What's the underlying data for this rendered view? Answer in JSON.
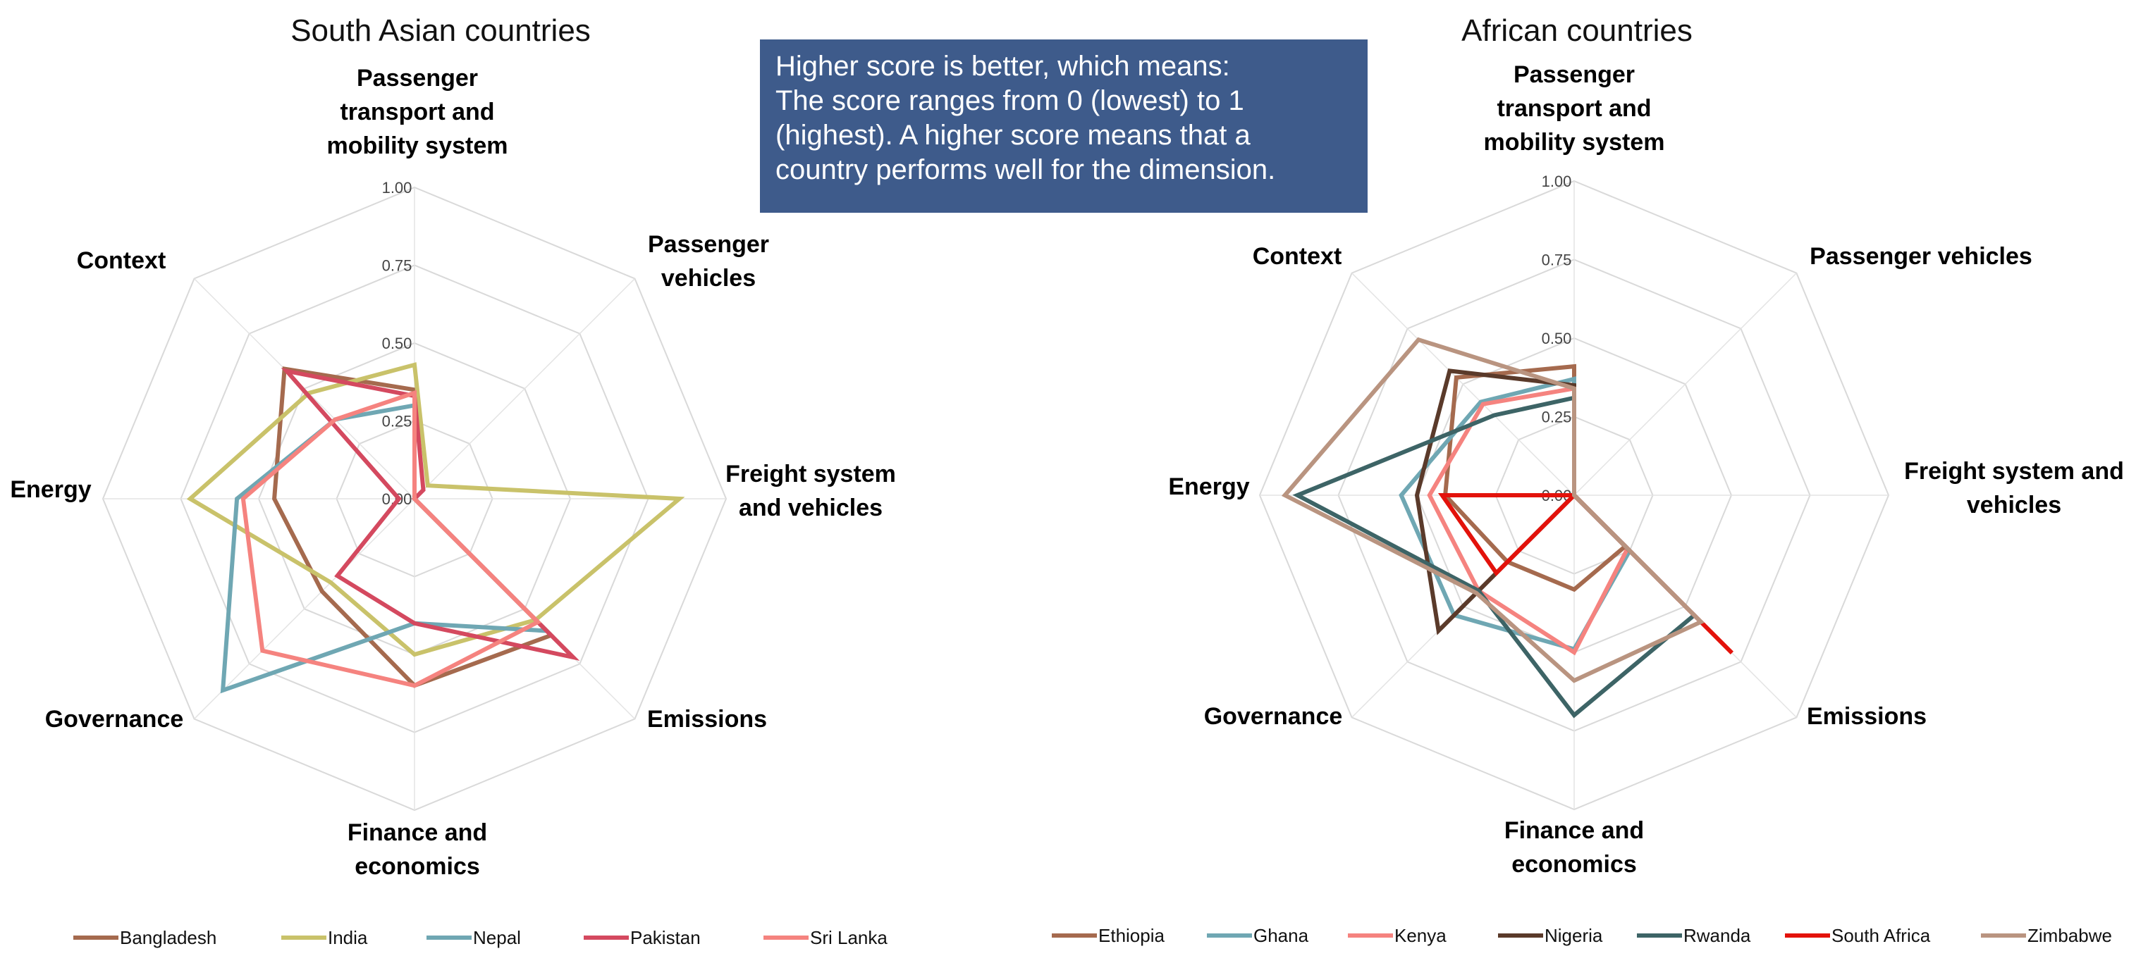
{
  "note": {
    "line1": "Higher score is better, which means:",
    "line2": "The score ranges from 0 (lowest) to 1",
    "line3": "(highest). A higher score means that a",
    "line4": "country performs well for the dimension."
  },
  "chart_data": [
    {
      "type": "radar",
      "title": "South Asian countries",
      "axes": [
        [
          "Passenger",
          "transport and",
          "mobility system"
        ],
        [
          "Passenger",
          "vehicles"
        ],
        [
          "Freight system",
          "and vehicles"
        ],
        [
          "Emissions"
        ],
        [
          "Finance and",
          "economics"
        ],
        [
          "Governance"
        ],
        [
          "Energy"
        ],
        [
          "Context"
        ]
      ],
      "range": [
        0,
        1
      ],
      "ticks": [
        "0.00",
        "0.25",
        "0.50",
        "0.75",
        "1.00"
      ],
      "tick_values": [
        0,
        0.25,
        0.5,
        0.75,
        1
      ],
      "legend_position": "bottom",
      "series": [
        {
          "name": "Bangladesh",
          "color": "#a56a4e",
          "values": [
            0.35,
            0.0,
            0.0,
            0.62,
            0.6,
            0.42,
            0.45,
            0.59
          ]
        },
        {
          "name": "India",
          "color": "#c9c26a",
          "values": [
            0.43,
            0.06,
            0.85,
            0.55,
            0.5,
            0.38,
            0.72,
            0.48
          ]
        },
        {
          "name": "Nepal",
          "color": "#6fa7b3",
          "values": [
            0.3,
            0.0,
            0.0,
            0.6,
            0.4,
            0.87,
            0.57,
            0.36
          ]
        },
        {
          "name": "Pakistan",
          "color": "#d4495f",
          "values": [
            0.33,
            0.04,
            0.0,
            0.72,
            0.4,
            0.35,
            0.05,
            0.58
          ]
        },
        {
          "name": "Sri Lanka",
          "color": "#f5837f",
          "values": [
            0.34,
            0.0,
            0.0,
            0.56,
            0.6,
            0.69,
            0.55,
            0.36
          ]
        }
      ]
    },
    {
      "type": "radar",
      "title": "African countries",
      "axes": [
        [
          "Passenger",
          "transport and",
          "mobility system"
        ],
        [
          "Passenger vehicles"
        ],
        [
          "Freight system and",
          "vehicles"
        ],
        [
          "Emissions"
        ],
        [
          "Finance and",
          "economics"
        ],
        [
          "Governance"
        ],
        [
          "Energy"
        ],
        [
          "Context"
        ]
      ],
      "range": [
        0,
        1
      ],
      "ticks": [
        "0.00",
        "0.25",
        "0.50",
        "0.75",
        "1.00"
      ],
      "tick_values": [
        0,
        0.25,
        0.5,
        0.75,
        1
      ],
      "legend_position": "bottom",
      "series": [
        {
          "name": "Ethiopia",
          "color": "#a56a4e",
          "values": [
            0.41,
            0.0,
            0.0,
            0.23,
            0.3,
            0.3,
            0.41,
            0.53
          ]
        },
        {
          "name": "Ghana",
          "color": "#6fa7b3",
          "values": [
            0.37,
            0.0,
            0.0,
            0.25,
            0.49,
            0.54,
            0.55,
            0.42
          ]
        },
        {
          "name": "Kenya",
          "color": "#f5837f",
          "values": [
            0.34,
            0.0,
            0.0,
            0.24,
            0.5,
            0.43,
            0.46,
            0.41
          ]
        },
        {
          "name": "Nigeria",
          "color": "#5a3a2a",
          "values": [
            0.35,
            0.0,
            0.0,
            0.47,
            0.0,
            0.61,
            0.5,
            0.56
          ]
        },
        {
          "name": "Rwanda",
          "color": "#3d6466",
          "values": [
            0.31,
            0.0,
            0.0,
            0.54,
            0.7,
            0.43,
            0.88,
            0.36
          ]
        },
        {
          "name": "South Africa",
          "color": "#e3120b",
          "values": [
            0.31,
            0.0,
            0.0,
            0.71,
            0.0,
            0.35,
            0.42,
            0.0
          ]
        },
        {
          "name": "Zimbabwe",
          "color": "#b99480",
          "values": [
            0.34,
            0.0,
            0.0,
            0.57,
            0.59,
            0.44,
            0.92,
            0.7
          ]
        }
      ]
    }
  ]
}
